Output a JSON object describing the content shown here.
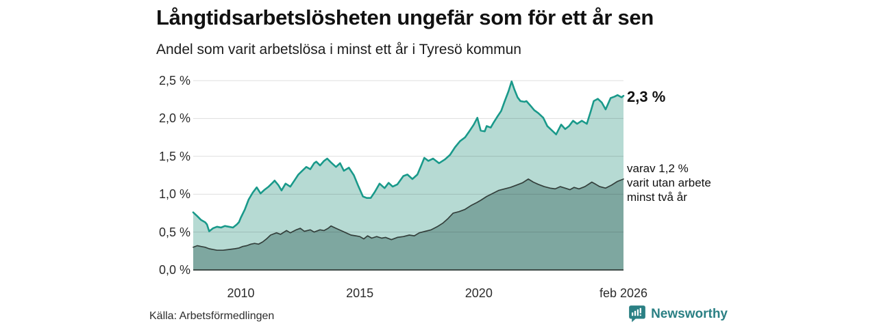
{
  "header": {
    "title": "Långtidsarbetslösheten ungefär som för ett år sen",
    "subtitle": "Andel som varit arbetslösa i minst ett år i Tyresö kommun"
  },
  "chart_data": {
    "type": "area",
    "title": "Långtidsarbetslösheten ungefär som för ett år sen",
    "subtitle": "Andel som varit arbetslösa i minst ett år i Tyresö kommun",
    "unit": "%",
    "xlim": [
      2008.0,
      2026.08
    ],
    "ylim": [
      0,
      2.5
    ],
    "grid": true,
    "x_ticks": [
      {
        "label": "2010",
        "x": 2010
      },
      {
        "label": "2015",
        "x": 2015
      },
      {
        "label": "2020",
        "x": 2020
      },
      {
        "label": "feb 2026",
        "x": 2026.08
      }
    ],
    "y_ticks": [
      {
        "label": "0,0 %",
        "value": 0
      },
      {
        "label": "0,5 %",
        "value": 0.5
      },
      {
        "label": "1,0 %",
        "value": 1.0
      },
      {
        "label": "1,5 %",
        "value": 1.5
      },
      {
        "label": "2,0 %",
        "value": 2.0
      },
      {
        "label": "2,5 %",
        "value": 2.5
      }
    ],
    "series": [
      {
        "name": "arbetslösa minst ett år",
        "line_color": "#19998a",
        "fill_color": "#b6dad3",
        "line_width": 2.6,
        "latest_value": "2,3 %",
        "points": [
          [
            2008.0,
            0.76
          ],
          [
            2008.17,
            0.71
          ],
          [
            2008.33,
            0.66
          ],
          [
            2008.5,
            0.63
          ],
          [
            2008.58,
            0.6
          ],
          [
            2008.67,
            0.51
          ],
          [
            2008.83,
            0.55
          ],
          [
            2009.0,
            0.57
          ],
          [
            2009.17,
            0.56
          ],
          [
            2009.33,
            0.58
          ],
          [
            2009.5,
            0.57
          ],
          [
            2009.67,
            0.56
          ],
          [
            2009.83,
            0.6
          ],
          [
            2009.92,
            0.63
          ],
          [
            2010.0,
            0.69
          ],
          [
            2010.17,
            0.8
          ],
          [
            2010.33,
            0.93
          ],
          [
            2010.5,
            1.02
          ],
          [
            2010.67,
            1.09
          ],
          [
            2010.83,
            1.01
          ],
          [
            2011.0,
            1.06
          ],
          [
            2011.17,
            1.1
          ],
          [
            2011.33,
            1.15
          ],
          [
            2011.42,
            1.18
          ],
          [
            2011.58,
            1.12
          ],
          [
            2011.71,
            1.05
          ],
          [
            2011.88,
            1.14
          ],
          [
            2012.08,
            1.1
          ],
          [
            2012.25,
            1.18
          ],
          [
            2012.42,
            1.26
          ],
          [
            2012.58,
            1.31
          ],
          [
            2012.75,
            1.36
          ],
          [
            2012.92,
            1.33
          ],
          [
            2013.08,
            1.41
          ],
          [
            2013.17,
            1.43
          ],
          [
            2013.33,
            1.38
          ],
          [
            2013.5,
            1.44
          ],
          [
            2013.63,
            1.47
          ],
          [
            2013.79,
            1.42
          ],
          [
            2014.0,
            1.36
          ],
          [
            2014.17,
            1.41
          ],
          [
            2014.33,
            1.31
          ],
          [
            2014.54,
            1.35
          ],
          [
            2014.75,
            1.25
          ],
          [
            2014.92,
            1.12
          ],
          [
            2015.13,
            0.97
          ],
          [
            2015.29,
            0.95
          ],
          [
            2015.46,
            0.95
          ],
          [
            2015.63,
            1.03
          ],
          [
            2015.83,
            1.14
          ],
          [
            2016.04,
            1.08
          ],
          [
            2016.21,
            1.15
          ],
          [
            2016.38,
            1.1
          ],
          [
            2016.58,
            1.13
          ],
          [
            2016.83,
            1.24
          ],
          [
            2017.0,
            1.26
          ],
          [
            2017.21,
            1.2
          ],
          [
            2017.42,
            1.26
          ],
          [
            2017.58,
            1.38
          ],
          [
            2017.71,
            1.48
          ],
          [
            2017.88,
            1.44
          ],
          [
            2018.08,
            1.47
          ],
          [
            2018.33,
            1.41
          ],
          [
            2018.58,
            1.46
          ],
          [
            2018.79,
            1.52
          ],
          [
            2019.0,
            1.62
          ],
          [
            2019.21,
            1.7
          ],
          [
            2019.42,
            1.75
          ],
          [
            2019.58,
            1.82
          ],
          [
            2019.79,
            1.92
          ],
          [
            2019.94,
            2.01
          ],
          [
            2020.08,
            1.84
          ],
          [
            2020.25,
            1.83
          ],
          [
            2020.33,
            1.9
          ],
          [
            2020.5,
            1.88
          ],
          [
            2020.63,
            1.95
          ],
          [
            2020.79,
            2.03
          ],
          [
            2020.94,
            2.1
          ],
          [
            2021.08,
            2.22
          ],
          [
            2021.25,
            2.36
          ],
          [
            2021.38,
            2.49
          ],
          [
            2021.5,
            2.38
          ],
          [
            2021.63,
            2.28
          ],
          [
            2021.75,
            2.23
          ],
          [
            2021.92,
            2.22
          ],
          [
            2022.0,
            2.23
          ],
          [
            2022.17,
            2.17
          ],
          [
            2022.33,
            2.11
          ],
          [
            2022.5,
            2.07
          ],
          [
            2022.71,
            2.01
          ],
          [
            2022.88,
            1.9
          ],
          [
            2023.08,
            1.84
          ],
          [
            2023.25,
            1.79
          ],
          [
            2023.46,
            1.92
          ],
          [
            2023.63,
            1.86
          ],
          [
            2023.79,
            1.9
          ],
          [
            2023.96,
            1.97
          ],
          [
            2024.13,
            1.93
          ],
          [
            2024.33,
            1.97
          ],
          [
            2024.54,
            1.93
          ],
          [
            2024.71,
            2.1
          ],
          [
            2024.83,
            2.23
          ],
          [
            2025.0,
            2.26
          ],
          [
            2025.17,
            2.21
          ],
          [
            2025.33,
            2.12
          ],
          [
            2025.54,
            2.27
          ],
          [
            2025.71,
            2.29
          ],
          [
            2025.83,
            2.31
          ],
          [
            2026.0,
            2.28
          ],
          [
            2026.08,
            2.3
          ]
        ]
      },
      {
        "name": "varav utan arbete minst två år",
        "line_color": "#333f3b",
        "fill_color": "#7ea7a0",
        "line_width": 1.7,
        "latest_value": "1,2 %",
        "points": [
          [
            2008.0,
            0.3
          ],
          [
            2008.17,
            0.32
          ],
          [
            2008.33,
            0.31
          ],
          [
            2008.5,
            0.3
          ],
          [
            2008.67,
            0.28
          ],
          [
            2008.83,
            0.27
          ],
          [
            2009.0,
            0.26
          ],
          [
            2009.25,
            0.26
          ],
          [
            2009.5,
            0.27
          ],
          [
            2009.75,
            0.28
          ],
          [
            2009.92,
            0.29
          ],
          [
            2010.08,
            0.31
          ],
          [
            2010.25,
            0.32
          ],
          [
            2010.42,
            0.34
          ],
          [
            2010.58,
            0.35
          ],
          [
            2010.75,
            0.34
          ],
          [
            2010.92,
            0.37
          ],
          [
            2011.08,
            0.41
          ],
          [
            2011.25,
            0.46
          ],
          [
            2011.5,
            0.49
          ],
          [
            2011.67,
            0.47
          ],
          [
            2011.92,
            0.52
          ],
          [
            2012.08,
            0.49
          ],
          [
            2012.33,
            0.53
          ],
          [
            2012.5,
            0.55
          ],
          [
            2012.67,
            0.51
          ],
          [
            2012.92,
            0.53
          ],
          [
            2013.08,
            0.5
          ],
          [
            2013.33,
            0.53
          ],
          [
            2013.5,
            0.52
          ],
          [
            2013.67,
            0.55
          ],
          [
            2013.79,
            0.58
          ],
          [
            2014.0,
            0.55
          ],
          [
            2014.21,
            0.52
          ],
          [
            2014.42,
            0.49
          ],
          [
            2014.63,
            0.46
          ],
          [
            2014.83,
            0.45
          ],
          [
            2015.0,
            0.44
          ],
          [
            2015.17,
            0.41
          ],
          [
            2015.33,
            0.45
          ],
          [
            2015.5,
            0.42
          ],
          [
            2015.71,
            0.44
          ],
          [
            2015.92,
            0.42
          ],
          [
            2016.08,
            0.43
          ],
          [
            2016.33,
            0.4
          ],
          [
            2016.58,
            0.43
          ],
          [
            2016.83,
            0.44
          ],
          [
            2017.08,
            0.46
          ],
          [
            2017.29,
            0.45
          ],
          [
            2017.5,
            0.49
          ],
          [
            2017.75,
            0.51
          ],
          [
            2018.0,
            0.53
          ],
          [
            2018.25,
            0.57
          ],
          [
            2018.5,
            0.62
          ],
          [
            2018.71,
            0.68
          ],
          [
            2018.92,
            0.75
          ],
          [
            2019.17,
            0.77
          ],
          [
            2019.42,
            0.8
          ],
          [
            2019.67,
            0.85
          ],
          [
            2019.92,
            0.89
          ],
          [
            2020.08,
            0.92
          ],
          [
            2020.33,
            0.97
          ],
          [
            2020.58,
            1.01
          ],
          [
            2020.83,
            1.05
          ],
          [
            2021.08,
            1.07
          ],
          [
            2021.33,
            1.09
          ],
          [
            2021.58,
            1.12
          ],
          [
            2021.83,
            1.15
          ],
          [
            2022.08,
            1.2
          ],
          [
            2022.29,
            1.16
          ],
          [
            2022.5,
            1.13
          ],
          [
            2022.75,
            1.1
          ],
          [
            2023.0,
            1.08
          ],
          [
            2023.21,
            1.07
          ],
          [
            2023.42,
            1.1
          ],
          [
            2023.63,
            1.08
          ],
          [
            2023.83,
            1.06
          ],
          [
            2024.0,
            1.09
          ],
          [
            2024.21,
            1.07
          ],
          [
            2024.46,
            1.1
          ],
          [
            2024.75,
            1.16
          ],
          [
            2024.92,
            1.13
          ],
          [
            2025.08,
            1.1
          ],
          [
            2025.33,
            1.08
          ],
          [
            2025.58,
            1.12
          ],
          [
            2025.83,
            1.17
          ],
          [
            2026.08,
            1.2
          ]
        ]
      }
    ],
    "annotations": {
      "latest_total": "2,3 %",
      "latest_two_year_lines": [
        "varav 1,2 %",
        "varit utan arbete",
        "minst två år"
      ]
    },
    "legend_position": "right-annotations"
  },
  "colors": {
    "baseline": "#3f4c48",
    "grid": "rgba(0,0,0,0.13)",
    "brand_teal": "#2b8084"
  },
  "footer": {
    "source": "Källa: Arbetsförmedlingen",
    "brand": "Newsworthy"
  }
}
